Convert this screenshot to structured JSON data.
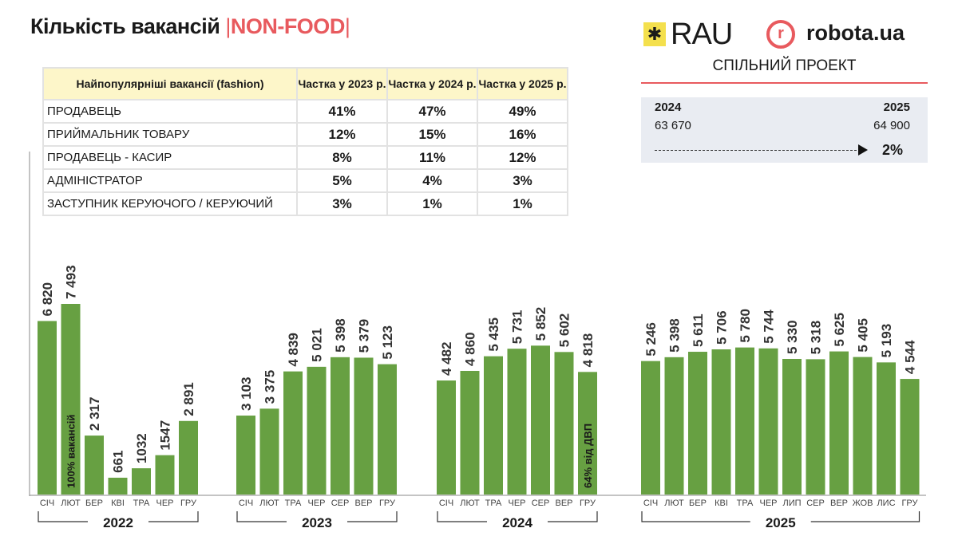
{
  "header": {
    "title": "Кількість вакансій",
    "separator": "|",
    "category": "NON-FOOD"
  },
  "logos": {
    "rau": "RAU",
    "robota": "robota.ua",
    "robota_mark": "r",
    "joint": "СПІЛЬНИЙ ПРОЕКТ"
  },
  "summary": {
    "year_from": "2024",
    "year_to": "2025",
    "value_from": "63 670",
    "value_to": "64 900",
    "change": "2%"
  },
  "table": {
    "headers": [
      "Найпопулярніші вакансії (fashion)",
      "Частка у 2023 р.",
      "Частка у 2024 р.",
      "Частка у 2025 р."
    ],
    "rows": [
      [
        "ПРОДАВЕЦЬ",
        "41%",
        "47%",
        "49%"
      ],
      [
        "ПРИЙМАЛЬНИК ТОВАРУ",
        "12%",
        "15%",
        "16%"
      ],
      [
        "ПРОДАВЕЦЬ - КАСИР",
        "8%",
        "11%",
        "12%"
      ],
      [
        "АДМІНІСТРАТОР",
        "5%",
        "4%",
        "3%"
      ],
      [
        "ЗАСТУПНИК КЕРУЮЧОГО / КЕРУЮЧИЙ",
        "3%",
        "1%",
        "1%"
      ]
    ]
  },
  "chart_data": {
    "type": "bar",
    "color": "#67a042",
    "ylim": [
      0,
      7500
    ],
    "groups": [
      {
        "year": "2022",
        "months": [
          "СІЧ",
          "ЛЮТ",
          "БЕР",
          "КВІ",
          "ТРА",
          "ЧЕР",
          "ГРУ"
        ],
        "values": [
          6820,
          7493,
          2317,
          661,
          1032,
          1547,
          2891
        ],
        "labels": [
          "6 820",
          "7 493",
          "2 317",
          "661",
          "1032",
          "1547",
          "2 891"
        ],
        "annotation": {
          "index": 1,
          "text": "100% вакансій"
        }
      },
      {
        "year": "2023",
        "months": [
          "СІЧ",
          "ЛЮТ",
          "ТРА",
          "ЧЕР",
          "СЕР",
          "ВЕР",
          "ГРУ"
        ],
        "values": [
          3103,
          3375,
          4839,
          5021,
          5398,
          5379,
          5123
        ],
        "labels": [
          "3 103",
          "3 375",
          "4 839",
          "5 021",
          "5 398",
          "5 379",
          "5 123"
        ]
      },
      {
        "year": "2024",
        "months": [
          "СІЧ",
          "ЛЮТ",
          "ТРА",
          "ЧЕР",
          "СЕР",
          "ВЕР",
          "ГРУ"
        ],
        "values": [
          4482,
          4860,
          5435,
          5731,
          5852,
          5602,
          4818
        ],
        "labels": [
          "4 482",
          "4 860",
          "5 435",
          "5 731",
          "5 852",
          "5 602",
          "4 818"
        ],
        "annotation": {
          "index": 6,
          "text": "64% від ДВП"
        }
      },
      {
        "year": "2025",
        "months": [
          "СІЧ",
          "ЛЮТ",
          "БЕР",
          "КВІ",
          "ТРА",
          "ЧЕР",
          "ЛИП",
          "СЕР",
          "ВЕР",
          "ЖОВ",
          "ЛИС",
          "ГРУ"
        ],
        "values": [
          5246,
          5398,
          5611,
          5706,
          5780,
          5744,
          5330,
          5318,
          5625,
          5405,
          5193,
          4544
        ],
        "labels": [
          "5 246",
          "5 398",
          "5 611",
          "5 706",
          "5 780",
          "5 744",
          "5 330",
          "5 318",
          "5 625",
          "5 405",
          "5 193",
          "4 544"
        ]
      }
    ]
  }
}
